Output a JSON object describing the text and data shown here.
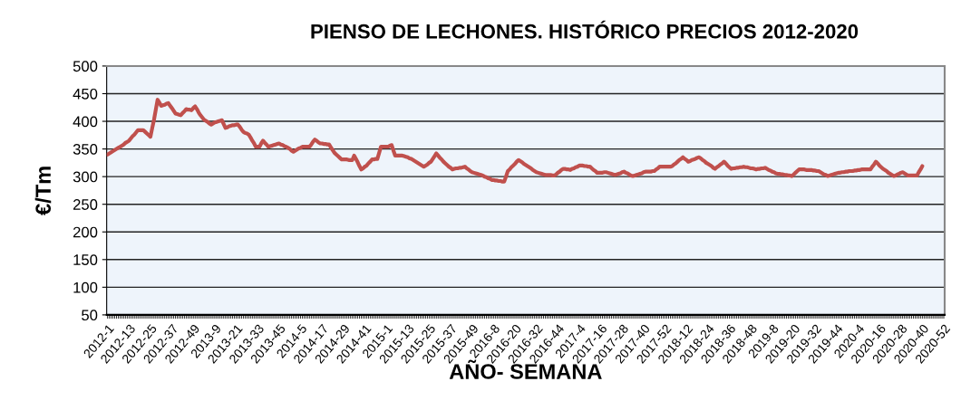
{
  "chart_data": {
    "type": "line",
    "title": "PIENSO DE LECHONES. HISTÓRICO PRECIOS 2012-2020",
    "xlabel": "AÑO- SEMANA",
    "ylabel": "€/Tm",
    "ylim": [
      50,
      500
    ],
    "yticks": [
      50,
      100,
      150,
      200,
      250,
      300,
      350,
      400,
      450,
      500
    ],
    "grid": "y",
    "line_style": "solid",
    "marker": "none",
    "categories": [
      "2012-1",
      null,
      null,
      null,
      null,
      null,
      null,
      null,
      null,
      null,
      null,
      null,
      "2012-13",
      null,
      null,
      null,
      null,
      null,
      null,
      null,
      null,
      null,
      null,
      null,
      "2012-25",
      null,
      null,
      null,
      null,
      null,
      null,
      null,
      null,
      null,
      null,
      null,
      "2012-37",
      null,
      null,
      null,
      null,
      null,
      null,
      null,
      null,
      null,
      null,
      null,
      "2012-49",
      null,
      null,
      null,
      null,
      null,
      null,
      null,
      null,
      null,
      null,
      null,
      "2013-9",
      null,
      null,
      null,
      null,
      null,
      null,
      null,
      null,
      null,
      null,
      null,
      "2013-21",
      null,
      null,
      null,
      null,
      null,
      null,
      null,
      null,
      null,
      null,
      null,
      "2013-33",
      null,
      null,
      null,
      null,
      null,
      null,
      null,
      null,
      null,
      null,
      null,
      "2013-45",
      null,
      null,
      null,
      null,
      null,
      null,
      null,
      null,
      null,
      null,
      null,
      "2014-5",
      null,
      null,
      null,
      null,
      null,
      null,
      null,
      null,
      null,
      null,
      null,
      "2014-17",
      null,
      null,
      null,
      null,
      null,
      null,
      null,
      null,
      null,
      null,
      null,
      "2014-29",
      null,
      null,
      null,
      null,
      null,
      null,
      null,
      null,
      null,
      null,
      null,
      "2014-41",
      null,
      null,
      null,
      null,
      null,
      null,
      null,
      null,
      null,
      null,
      null,
      "2015-1",
      null,
      null,
      null,
      null,
      null,
      null,
      null,
      null,
      null,
      null,
      null,
      "2015-13",
      null,
      null,
      null,
      null,
      null,
      null,
      null,
      null,
      null,
      null,
      null,
      "2015-25",
      null,
      null,
      null,
      null,
      null,
      null,
      null,
      null,
      null,
      null,
      null,
      "2015-37",
      null,
      null,
      null,
      null,
      null,
      null,
      null,
      null,
      null,
      null,
      null,
      "2015-49",
      null,
      null,
      null,
      null,
      null,
      null,
      null,
      null,
      null,
      null,
      null,
      "2016-8",
      null,
      null,
      null,
      null,
      null,
      null,
      null,
      null,
      null,
      null,
      null,
      "2016-20",
      null,
      null,
      null,
      null,
      null,
      null,
      null,
      null,
      null,
      null,
      null,
      "2016-32",
      null,
      null,
      null,
      null,
      null,
      null,
      null,
      null,
      null,
      null,
      null,
      "2016-44",
      null,
      null,
      null,
      null,
      null,
      null,
      null,
      null,
      null,
      null,
      null,
      "2017-4",
      null,
      null,
      null,
      null,
      null,
      null,
      null,
      null,
      null,
      null,
      null,
      "2017-16",
      null,
      null,
      null,
      null,
      null,
      null,
      null,
      null,
      null,
      null,
      null,
      "2017-28",
      null,
      null,
      null,
      null,
      null,
      null,
      null,
      null,
      null,
      null,
      null,
      "2017-40",
      null,
      null,
      null,
      null,
      null,
      null,
      null,
      null,
      null,
      null,
      null,
      "2017-52",
      null,
      null,
      null,
      null,
      null,
      null,
      null,
      null,
      null,
      null,
      null,
      "2018-12",
      null,
      null,
      null,
      null,
      null,
      null,
      null,
      null,
      null,
      null,
      null,
      "2018-24",
      null,
      null,
      null,
      null,
      null,
      null,
      null,
      null,
      null,
      null,
      null,
      "2018-36",
      null,
      null,
      null,
      null,
      null,
      null,
      null,
      null,
      null,
      null,
      null,
      "2018-48",
      null,
      null,
      null,
      null,
      null,
      null,
      null,
      null,
      null,
      null,
      null,
      "2019-8",
      null,
      null,
      null,
      null,
      null,
      null,
      null,
      null,
      null,
      null,
      null,
      "2019-20",
      null,
      null,
      null,
      null,
      null,
      null,
      null,
      null,
      null,
      null,
      null,
      "2019-32",
      null,
      null,
      null,
      null,
      null,
      null,
      null,
      null,
      null,
      null,
      null,
      "2019-44",
      null,
      null,
      null,
      null,
      null,
      null,
      null,
      null,
      null,
      null,
      null,
      "2020-4",
      null,
      null,
      null,
      null,
      null,
      null,
      null,
      null,
      null,
      null,
      null,
      "2020-16",
      null,
      null,
      null,
      null,
      null,
      null,
      null,
      null,
      null,
      null,
      null,
      "2020-28",
      null,
      null,
      null,
      null,
      null,
      null,
      null,
      null,
      null,
      null,
      null,
      "2020-40",
      null,
      null,
      null,
      null,
      null,
      null,
      null,
      null,
      null,
      null,
      null,
      "2020-52"
    ],
    "series": [
      {
        "color": "#c0504d",
        "values": [
          340,
          342,
          344,
          346,
          348,
          350,
          352,
          354,
          356,
          358,
          361,
          363,
          365,
          369,
          373,
          376,
          380,
          384,
          384,
          384,
          384,
          381,
          378,
          375,
          372,
          388,
          403,
          421,
          439,
          434,
          428,
          429,
          430,
          432,
          433,
          428,
          424,
          419,
          414,
          413,
          412,
          411,
          415,
          418,
          422,
          421,
          421,
          420,
          424,
          427,
          422,
          416,
          411,
          407,
          403,
          401,
          399,
          396,
          394,
          396,
          398,
          399,
          400,
          401,
          402,
          395,
          388,
          389,
          391,
          392,
          393,
          393,
          394,
          394,
          390,
          385,
          381,
          379,
          378,
          376,
          371,
          365,
          360,
          354,
          354,
          354,
          360,
          365,
          361,
          358,
          354,
          355,
          356,
          357,
          358,
          359,
          360,
          358,
          357,
          355,
          354,
          352,
          350,
          347,
          345,
          347,
          349,
          351,
          352,
          354,
          354,
          354,
          354,
          354,
          358,
          363,
          367,
          365,
          362,
          360,
          360,
          359,
          359,
          358,
          358,
          353,
          348,
          343,
          340,
          337,
          334,
          331,
          331,
          331,
          331,
          330,
          330,
          330,
          338,
          332,
          326,
          319,
          313,
          315,
          318,
          320,
          324,
          327,
          331,
          331,
          332,
          332,
          343,
          354,
          354,
          354,
          354,
          354,
          356,
          357,
          347,
          338,
          338,
          338,
          338,
          338,
          337,
          336,
          335,
          333,
          332,
          330,
          328,
          326,
          324,
          322,
          320,
          318,
          320,
          322,
          325,
          327,
          332,
          337,
          342,
          338,
          334,
          331,
          327,
          324,
          321,
          318,
          316,
          313,
          314,
          315,
          315,
          316,
          316,
          317,
          318,
          315,
          313,
          310,
          308,
          307,
          306,
          305,
          304,
          303,
          302,
          300,
          299,
          297,
          296,
          294,
          294,
          293,
          293,
          292,
          292,
          291,
          291,
          300,
          310,
          313,
          317,
          320,
          323,
          327,
          330,
          328,
          326,
          323,
          321,
          319,
          317,
          315,
          312,
          310,
          308,
          307,
          306,
          305,
          304,
          303,
          303,
          303,
          303,
          302,
          302,
          304,
          307,
          309,
          312,
          314,
          314,
          313,
          313,
          312,
          314,
          315,
          317,
          318,
          320,
          320,
          320,
          319,
          319,
          318,
          318,
          315,
          312,
          310,
          307,
          307,
          307,
          307,
          308,
          308,
          307,
          306,
          305,
          304,
          303,
          304,
          305,
          306,
          308,
          309,
          307,
          306,
          304,
          302,
          301,
          302,
          303,
          304,
          305,
          306,
          308,
          309,
          309,
          309,
          309,
          310,
          310,
          313,
          315,
          318,
          318,
          318,
          318,
          318,
          318,
          318,
          319,
          322,
          324,
          327,
          330,
          332,
          335,
          332,
          330,
          327,
          328,
          330,
          331,
          332,
          334,
          335,
          333,
          330,
          328,
          325,
          323,
          321,
          319,
          316,
          314,
          317,
          319,
          322,
          324,
          327,
          324,
          320,
          317,
          314,
          315,
          315,
          316,
          316,
          317,
          317,
          318,
          317,
          317,
          316,
          315,
          315,
          314,
          313,
          314,
          314,
          315,
          315,
          316,
          314,
          312,
          311,
          309,
          308,
          306,
          305,
          305,
          304,
          304,
          303,
          303,
          302,
          302,
          301,
          304,
          307,
          310,
          313,
          313,
          313,
          313,
          312,
          312,
          312,
          312,
          311,
          311,
          310,
          310,
          308,
          306,
          304,
          303,
          301,
          302,
          303,
          304,
          305,
          306,
          307,
          307,
          308,
          308,
          309,
          309,
          310,
          310,
          310,
          311,
          311,
          312,
          312,
          313,
          313,
          313,
          313,
          313,
          313,
          318,
          322,
          327,
          324,
          320,
          317,
          314,
          312,
          310,
          307,
          305,
          303,
          301,
          302,
          304,
          305,
          307,
          308,
          306,
          304,
          302,
          302,
          302,
          302,
          302,
          302,
          308,
          313,
          319,
          null,
          null,
          null,
          null,
          null,
          null,
          null,
          null,
          null,
          null,
          null,
          null
        ]
      }
    ]
  }
}
